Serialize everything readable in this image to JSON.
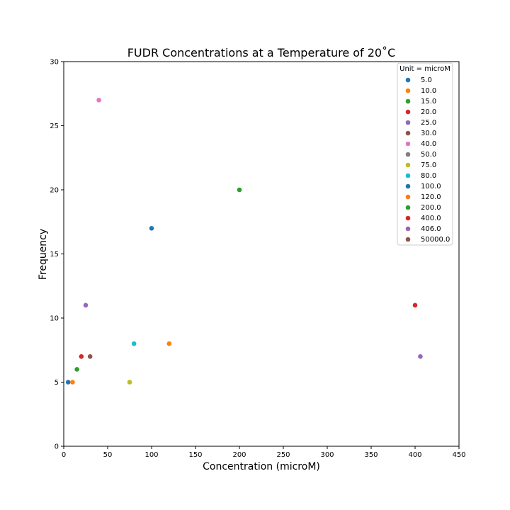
{
  "chart_data": {
    "type": "scatter",
    "title": "FUDR Concentrations at a Temperature of 20˚C",
    "xlabel": "Concentration (microM)",
    "ylabel": "Frequency",
    "xlim": [
      0,
      450
    ],
    "ylim": [
      0,
      30
    ],
    "xticks": [
      0,
      50,
      100,
      150,
      200,
      250,
      300,
      350,
      400,
      450
    ],
    "yticks": [
      0,
      5,
      10,
      15,
      20,
      25,
      30
    ],
    "grid": false,
    "legend": {
      "title": "Unit = microM",
      "placement": "top-right"
    },
    "series": [
      {
        "name": "5.0",
        "color": "#1f77b4",
        "x": 5,
        "y": 5
      },
      {
        "name": "10.0",
        "color": "#ff7f0e",
        "x": 10,
        "y": 5
      },
      {
        "name": "15.0",
        "color": "#2ca02c",
        "x": 15,
        "y": 6
      },
      {
        "name": "20.0",
        "color": "#d62728",
        "x": 20,
        "y": 7
      },
      {
        "name": "25.0",
        "color": "#9467bd",
        "x": 25,
        "y": 11
      },
      {
        "name": "30.0",
        "color": "#8c564b",
        "x": 30,
        "y": 7
      },
      {
        "name": "40.0",
        "color": "#e377c2",
        "x": 40,
        "y": 27
      },
      {
        "name": "50.0",
        "color": "#7f7f7f",
        "x": null,
        "y": null
      },
      {
        "name": "75.0",
        "color": "#bcbd22",
        "x": 75,
        "y": 5
      },
      {
        "name": "80.0",
        "color": "#17becf",
        "x": 80,
        "y": 8
      },
      {
        "name": "100.0",
        "color": "#1f77b4",
        "x": 100,
        "y": 17
      },
      {
        "name": "120.0",
        "color": "#ff7f0e",
        "x": 120,
        "y": 8
      },
      {
        "name": "200.0",
        "color": "#2ca02c",
        "x": 200,
        "y": 20
      },
      {
        "name": "400.0",
        "color": "#d62728",
        "x": 400,
        "y": 11
      },
      {
        "name": "406.0",
        "color": "#9467bd",
        "x": 406,
        "y": 7
      },
      {
        "name": "50000.0",
        "color": "#8c564b",
        "x": null,
        "y": null
      }
    ]
  }
}
